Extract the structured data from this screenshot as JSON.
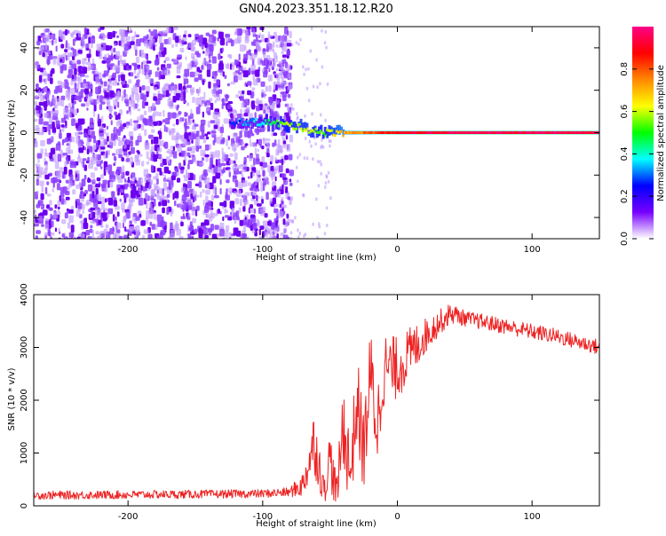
{
  "title": "GN04.2023.351.18.12.R20",
  "chart_data": [
    {
      "type": "heatmap",
      "xlabel": "Height of straight line (km)",
      "ylabel": "Frequency (Hz)",
      "xlim": [
        -270,
        150
      ],
      "ylim": [
        -50,
        50
      ],
      "xticks": [
        -200,
        -100,
        0,
        100
      ],
      "yticks": [
        -40,
        -20,
        0,
        20,
        40
      ],
      "grid": false,
      "noise_region_x": [
        -270,
        -85
      ],
      "signal_ridge": {
        "frequency": 0,
        "start_x": -125,
        "points": [
          {
            "x": -125,
            "f": 5,
            "amp": 0.25
          },
          {
            "x": -100,
            "f": 5,
            "amp": 0.4
          },
          {
            "x": -85,
            "f": 4,
            "amp": 0.55
          },
          {
            "x": -70,
            "f": 2,
            "amp": 0.6
          },
          {
            "x": -55,
            "f": 0,
            "amp": 0.55
          },
          {
            "x": -40,
            "f": 0,
            "amp": 0.7
          },
          {
            "x": 0,
            "f": 0,
            "amp": 0.9
          },
          {
            "x": 50,
            "f": 0,
            "amp": 0.95
          },
          {
            "x": 100,
            "f": 0,
            "amp": 0.95
          },
          {
            "x": 150,
            "f": 0,
            "amp": 0.95
          }
        ]
      },
      "colorbar": {
        "label": "Normalized spectral amplitude",
        "range": [
          0,
          1
        ],
        "ticks": [
          "0.0",
          "0.2",
          "0.4",
          "0.6",
          "0.8"
        ],
        "colors": [
          "#ffffff",
          "#7700ff",
          "#0000ff",
          "#00ffff",
          "#00ff00",
          "#ffff00",
          "#ff8800",
          "#ff0000",
          "#ff0088"
        ]
      }
    },
    {
      "type": "line",
      "xlabel": "Height of straight line (km)",
      "ylabel": "SNR (10 * v/v)",
      "xlim": [
        -270,
        150
      ],
      "ylim": [
        0,
        4000
      ],
      "xticks": [
        -200,
        -100,
        0,
        100
      ],
      "yticks": [
        0,
        1000,
        2000,
        3000,
        4000
      ],
      "grid": false,
      "series": [
        {
          "color": "#ee2222",
          "x": [
            -270,
            -200,
            -150,
            -100,
            -80,
            -70,
            -62,
            -58,
            -55,
            -50,
            -45,
            -40,
            -35,
            -30,
            -25,
            -20,
            -15,
            -10,
            0,
            10,
            20,
            30,
            40,
            50,
            60,
            80,
            100,
            120,
            150
          ],
          "y": [
            200,
            210,
            220,
            230,
            260,
            400,
            1200,
            800,
            300,
            900,
            200,
            1600,
            600,
            2000,
            1000,
            2500,
            1500,
            2600,
            2600,
            2900,
            3200,
            3450,
            3650,
            3550,
            3500,
            3400,
            3300,
            3200,
            3000
          ],
          "spread": [
            80,
            80,
            80,
            80,
            90,
            250,
            600,
            500,
            300,
            600,
            300,
            900,
            700,
            900,
            800,
            900,
            800,
            700,
            600,
            500,
            350,
            250,
            200,
            150,
            150,
            150,
            150,
            150,
            150
          ]
        }
      ]
    }
  ]
}
